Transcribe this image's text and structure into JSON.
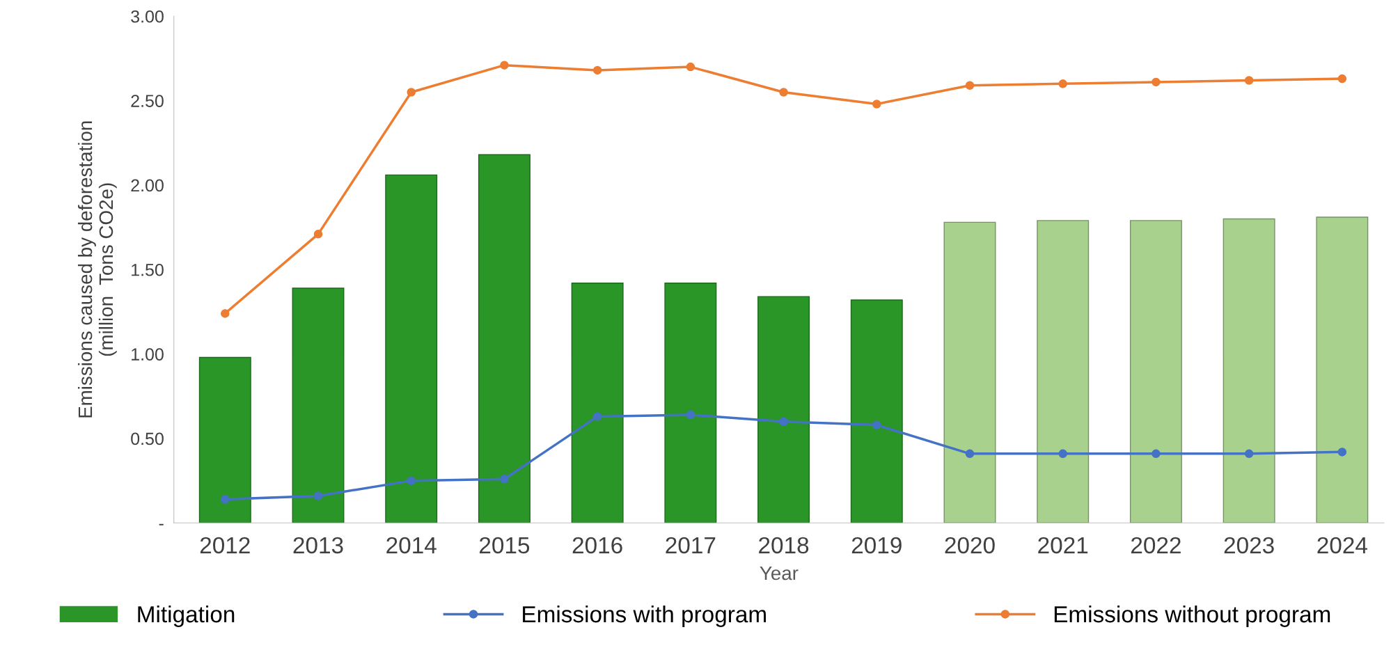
{
  "chart_data": {
    "type": "bar",
    "xlabel": "Year",
    "ylabel": "Emissions caused by deforestation\n(million  Tons CO2e)",
    "categories": [
      "2012",
      "2013",
      "2014",
      "2015",
      "2016",
      "2017",
      "2018",
      "2019",
      "2020",
      "2021",
      "2022",
      "2023",
      "2024"
    ],
    "ylim": [
      0,
      3
    ],
    "yticks": [
      {
        "value": 0,
        "label": "-"
      },
      {
        "value": 0.5,
        "label": "0.50"
      },
      {
        "value": 1,
        "label": "1.00"
      },
      {
        "value": 1.5,
        "label": "1.50"
      },
      {
        "value": 2,
        "label": "2.00"
      },
      {
        "value": 2.5,
        "label": "2.50"
      },
      {
        "value": 3,
        "label": "3.00"
      }
    ],
    "grid": false,
    "legend": "bottom",
    "marker": "circle",
    "line_style": "solid",
    "series": [
      {
        "name": "Mitigation",
        "colors": [
          "#2a9628",
          "#2a9628",
          "#2a9628",
          "#2a9628",
          "#2a9628",
          "#2a9628",
          "#2a9628",
          "#2a9628",
          "#a9d18e",
          "#a9d18e",
          "#a9d18e",
          "#a9d18e",
          "#a9d18e"
        ],
        "values": [
          0.98,
          1.39,
          2.06,
          2.18,
          1.42,
          1.42,
          1.34,
          1.32,
          1.78,
          1.79,
          1.79,
          1.8,
          1.81
        ]
      },
      {
        "name": "Emissions with program",
        "type": "line",
        "color": "#4472c4",
        "values": [
          0.14,
          0.16,
          0.25,
          0.26,
          0.63,
          0.64,
          0.6,
          0.58,
          0.41,
          0.41,
          0.41,
          0.41,
          0.42
        ]
      },
      {
        "name": "Emissions without program",
        "type": "line",
        "color": "#ed7d31",
        "values": [
          1.24,
          1.71,
          2.55,
          2.71,
          2.68,
          2.7,
          2.55,
          2.48,
          2.59,
          2.6,
          2.61,
          2.62,
          2.63
        ]
      }
    ]
  }
}
